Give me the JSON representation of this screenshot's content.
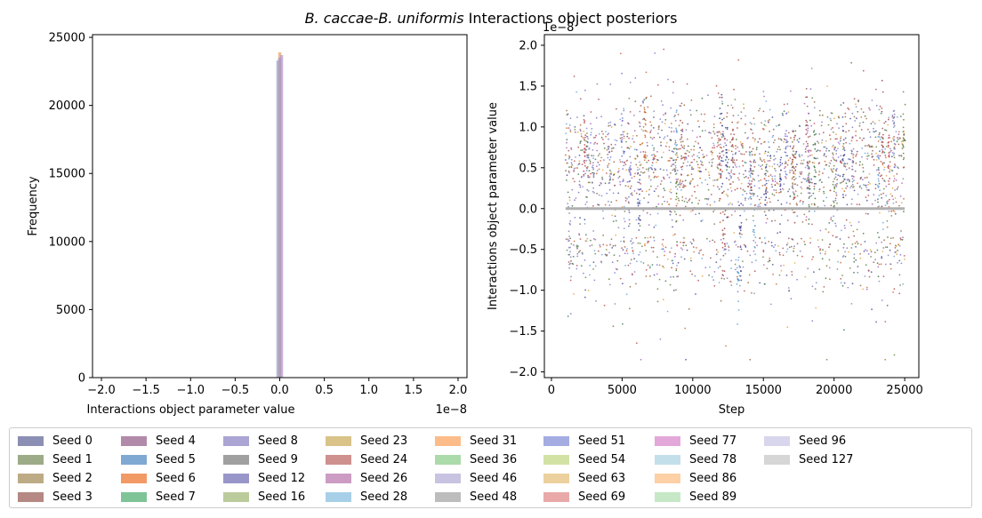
{
  "chart_data": [
    {
      "type": "histogram",
      "title": "",
      "xlabel": "Interactions object parameter value",
      "ylabel": "Frequency",
      "x_multiplier": "1e−8",
      "xlim": [
        -2.1,
        2.1
      ],
      "ylim": [
        0,
        25200
      ],
      "xticks": [
        "−2.0",
        "−1.5",
        "−1.0",
        "−0.5",
        "0.0",
        "0.5",
        "1.0",
        "1.5",
        "2.0"
      ],
      "xtick_values": [
        -2.0,
        -1.5,
        -1.0,
        -0.5,
        0.0,
        0.5,
        1.0,
        1.5,
        2.0
      ],
      "yticks": [
        "0",
        "5000",
        "10000",
        "15000",
        "20000",
        "25000"
      ],
      "ytick_values": [
        0,
        5000,
        10000,
        15000,
        20000,
        25000
      ],
      "bars": [
        {
          "x": -0.02,
          "value": 23300,
          "color": "#8fa8d0"
        },
        {
          "x": 0.0,
          "value": 23900,
          "color": "#e8a96a"
        },
        {
          "x": 0.02,
          "value": 23700,
          "color": "#b79bc8"
        },
        {
          "x": 0.0,
          "value": 23500,
          "color": "#a99ac8"
        }
      ]
    },
    {
      "type": "scatter",
      "title": "",
      "xlabel": "Step",
      "ylabel": "Interactions object parameter value",
      "y_multiplier": "1e−8",
      "xlim": [
        -500,
        26000
      ],
      "ylim": [
        -2.07,
        2.13
      ],
      "xticks": [
        "0",
        "5000",
        "10000",
        "15000",
        "20000",
        "25000"
      ],
      "xtick_values": [
        0,
        5000,
        10000,
        15000,
        20000,
        25000
      ],
      "yticks": [
        "−2.0",
        "−1.5",
        "−1.0",
        "−0.5",
        "0.0",
        "0.5",
        "1.0",
        "1.5",
        "2.0"
      ],
      "ytick_values": [
        -2.0,
        -1.5,
        -1.0,
        -0.5,
        0.0,
        0.5,
        1.0,
        1.5,
        2.0
      ],
      "x_range": [
        1000,
        25000
      ],
      "zero_line": 0.0,
      "note_points": "each series trace drawn as thinned dots between x 1000 and 25000"
    }
  ],
  "suptitle": {
    "italic_part": "B. caccae-B. uniformis",
    "rest": " Interactions object posteriors"
  },
  "legend": {
    "items": [
      {
        "label": "Seed 0",
        "color": "#8c8fb4"
      },
      {
        "label": "Seed 1",
        "color": "#9dab87"
      },
      {
        "label": "Seed 2",
        "color": "#bdab86"
      },
      {
        "label": "Seed 3",
        "color": "#b58883"
      },
      {
        "label": "Seed 4",
        "color": "#b18aa9"
      },
      {
        "label": "Seed 5",
        "color": "#7fa9d2"
      },
      {
        "label": "Seed 6",
        "color": "#f29a66"
      },
      {
        "label": "Seed 7",
        "color": "#7ec497"
      },
      {
        "label": "Seed 8",
        "color": "#aaa5d2"
      },
      {
        "label": "Seed 9",
        "color": "#a0a0a0"
      },
      {
        "label": "Seed 12",
        "color": "#9896c9"
      },
      {
        "label": "Seed 16",
        "color": "#bccb9b"
      },
      {
        "label": "Seed 23",
        "color": "#d9c389"
      },
      {
        "label": "Seed 24",
        "color": "#ce918e"
      },
      {
        "label": "Seed 26",
        "color": "#cc9cc4"
      },
      {
        "label": "Seed 28",
        "color": "#a7d0e8"
      },
      {
        "label": "Seed 31",
        "color": "#fbbc8a"
      },
      {
        "label": "Seed 36",
        "color": "#abdbab"
      },
      {
        "label": "Seed 46",
        "color": "#c7c3e0"
      },
      {
        "label": "Seed 48",
        "color": "#bdbdbd"
      },
      {
        "label": "Seed 51",
        "color": "#a5ace2"
      },
      {
        "label": "Seed 54",
        "color": "#d2e2a5"
      },
      {
        "label": "Seed 63",
        "color": "#ecd09d"
      },
      {
        "label": "Seed 69",
        "color": "#e9a9a9"
      },
      {
        "label": "Seed 77",
        "color": "#e3a8da"
      },
      {
        "label": "Seed 78",
        "color": "#c3dfea"
      },
      {
        "label": "Seed 86",
        "color": "#fdd0a6"
      },
      {
        "label": "Seed 89",
        "color": "#c6e8c6"
      },
      {
        "label": "Seed 96",
        "color": "#d8d6ec"
      },
      {
        "label": "Seed 127",
        "color": "#d6d6d6"
      }
    ]
  }
}
